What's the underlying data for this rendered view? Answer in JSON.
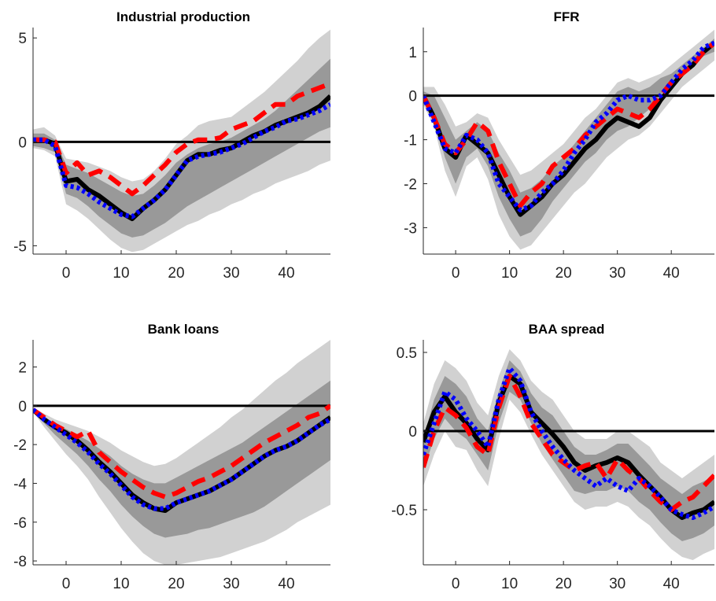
{
  "chart_data": [
    {
      "type": "line",
      "title": "Industrial production",
      "xlim": [
        -6,
        48
      ],
      "ylim": [
        -5.4,
        5.5
      ],
      "xticks": [
        0,
        10,
        20,
        30,
        40
      ],
      "yticks": [
        -5,
        0,
        5
      ],
      "ytick_labels": [
        "-5",
        "0",
        "5"
      ],
      "zero_line": true,
      "x": [
        -6,
        -4,
        -2,
        0,
        2,
        4,
        6,
        8,
        10,
        12,
        14,
        16,
        18,
        20,
        22,
        24,
        26,
        28,
        30,
        32,
        34,
        36,
        38,
        40,
        42,
        44,
        46,
        48
      ],
      "bands": {
        "outer_upper": [
          0.6,
          0.7,
          0.3,
          -0.8,
          -0.9,
          -1.0,
          -1.2,
          -1.4,
          -1.7,
          -1.9,
          -1.8,
          -1.4,
          -0.8,
          -0.1,
          0.3,
          0.8,
          1.0,
          1.1,
          1.2,
          1.6,
          2.0,
          2.4,
          2.9,
          3.4,
          3.9,
          4.5,
          5.0,
          5.4
        ],
        "inner_upper": [
          0.4,
          0.4,
          0.1,
          -1.1,
          -1.3,
          -1.5,
          -1.8,
          -2.1,
          -2.4,
          -2.6,
          -2.5,
          -2.1,
          -1.6,
          -1.0,
          -0.6,
          -0.3,
          -0.1,
          0.0,
          0.2,
          0.5,
          0.8,
          1.1,
          1.5,
          2.0,
          2.5,
          3.0,
          3.5,
          4.0
        ],
        "inner_lower": [
          -0.2,
          -0.3,
          -0.5,
          -2.5,
          -2.7,
          -3.1,
          -3.6,
          -4.0,
          -4.4,
          -4.6,
          -4.5,
          -4.2,
          -3.9,
          -3.5,
          -3.1,
          -2.8,
          -2.5,
          -2.2,
          -1.9,
          -1.6,
          -1.3,
          -1.0,
          -0.7,
          -0.4,
          -0.1,
          0.2,
          0.5,
          0.7
        ],
        "outer_lower": [
          -0.3,
          -0.4,
          -0.7,
          -3.0,
          -3.3,
          -3.7,
          -4.2,
          -4.7,
          -5.1,
          -5.3,
          -5.2,
          -4.9,
          -4.6,
          -4.3,
          -4.0,
          -3.8,
          -3.5,
          -3.3,
          -3.0,
          -2.8,
          -2.5,
          -2.3,
          -2.0,
          -1.8,
          -1.6,
          -1.4,
          -1.1,
          -0.9
        ]
      },
      "series": [
        {
          "values": [
            0.1,
            0.1,
            -0.1,
            -1.9,
            -1.8,
            -2.3,
            -2.6,
            -3.0,
            -3.4,
            -3.7,
            -3.2,
            -2.8,
            -2.3,
            -1.6,
            -0.9,
            -0.6,
            -0.6,
            -0.4,
            -0.3,
            0.0,
            0.3,
            0.5,
            0.8,
            1.0,
            1.2,
            1.4,
            1.7,
            2.2
          ],
          "color": "#000000",
          "style": "solid"
        },
        {
          "values": [
            0.1,
            0.1,
            0.0,
            -1.5,
            -1.0,
            -1.6,
            -1.4,
            -1.7,
            -2.1,
            -2.5,
            -2.1,
            -1.6,
            -1.1,
            -0.5,
            -0.1,
            0.1,
            0.1,
            0.2,
            0.6,
            0.8,
            1.0,
            1.4,
            1.8,
            1.8,
            2.2,
            2.4,
            2.6,
            2.8
          ],
          "color": "#ff0000",
          "style": "dashed"
        },
        {
          "values": [
            0.1,
            0.1,
            -0.2,
            -2.1,
            -2.2,
            -2.5,
            -2.9,
            -3.2,
            -3.5,
            -3.6,
            -3.2,
            -2.8,
            -2.3,
            -1.6,
            -0.9,
            -0.7,
            -0.6,
            -0.5,
            -0.3,
            -0.1,
            0.2,
            0.5,
            0.7,
            1.0,
            1.1,
            1.3,
            1.5,
            1.8
          ],
          "color": "#0000ff",
          "style": "dotted"
        }
      ]
    },
    {
      "type": "line",
      "title": "FFR",
      "xlim": [
        -6,
        48
      ],
      "ylim": [
        -3.6,
        1.55
      ],
      "xticks": [
        0,
        10,
        20,
        30,
        40
      ],
      "yticks": [
        -3,
        -2,
        -1,
        0,
        1
      ],
      "ytick_labels": [
        "-3",
        "-2",
        "-1",
        "0",
        "1"
      ],
      "zero_line": true,
      "x": [
        -6,
        -4,
        -2,
        0,
        2,
        4,
        6,
        8,
        10,
        12,
        14,
        16,
        18,
        20,
        22,
        24,
        26,
        28,
        30,
        32,
        34,
        36,
        38,
        40,
        42,
        44,
        46,
        48
      ],
      "bands": {
        "outer_upper": [
          0.2,
          0.2,
          -0.2,
          -0.7,
          -0.6,
          -0.4,
          -0.5,
          -1.0,
          -1.4,
          -1.8,
          -1.7,
          -1.5,
          -1.3,
          -1.1,
          -0.8,
          -0.5,
          -0.3,
          0.0,
          0.3,
          0.4,
          0.3,
          0.4,
          0.5,
          0.7,
          0.9,
          1.1,
          1.3,
          1.5
        ],
        "inner_upper": [
          0.1,
          0.0,
          -0.5,
          -1.0,
          -0.8,
          -0.6,
          -0.8,
          -1.3,
          -1.7,
          -2.2,
          -2.1,
          -1.9,
          -1.6,
          -1.4,
          -1.1,
          -0.8,
          -0.5,
          -0.2,
          0.1,
          0.2,
          0.1,
          0.2,
          0.4,
          0.5,
          0.7,
          0.9,
          1.1,
          1.3
        ],
        "inner_lower": [
          -0.1,
          -0.5,
          -1.4,
          -2.0,
          -1.4,
          -1.2,
          -1.6,
          -2.3,
          -2.8,
          -3.2,
          -3.1,
          -2.8,
          -2.4,
          -2.1,
          -1.8,
          -1.5,
          -1.3,
          -1.0,
          -0.8,
          -0.7,
          -0.5,
          -0.3,
          0.0,
          0.3,
          0.5,
          0.7,
          0.9,
          1.0
        ],
        "outer_lower": [
          -0.2,
          -0.7,
          -1.7,
          -2.3,
          -1.6,
          -1.4,
          -1.9,
          -2.7,
          -3.2,
          -3.5,
          -3.4,
          -3.1,
          -2.8,
          -2.5,
          -2.2,
          -2.0,
          -1.7,
          -1.4,
          -1.2,
          -1.0,
          -0.9,
          -0.7,
          -0.4,
          -0.1,
          0.2,
          0.4,
          0.6,
          0.8
        ]
      },
      "series": [
        {
          "values": [
            0.0,
            -0.5,
            -1.2,
            -1.4,
            -0.9,
            -1.1,
            -1.3,
            -1.8,
            -2.3,
            -2.7,
            -2.5,
            -2.3,
            -2.0,
            -1.8,
            -1.5,
            -1.2,
            -1.0,
            -0.7,
            -0.5,
            -0.6,
            -0.7,
            -0.5,
            -0.1,
            0.2,
            0.5,
            0.7,
            1.0,
            1.2
          ],
          "color": "#000000",
          "style": "solid"
        },
        {
          "values": [
            0.0,
            -0.5,
            -1.1,
            -1.3,
            -1.0,
            -0.6,
            -0.8,
            -1.5,
            -2.0,
            -2.5,
            -2.2,
            -2.0,
            -1.6,
            -1.4,
            -1.2,
            -0.9,
            -0.7,
            -0.5,
            -0.3,
            -0.4,
            -0.5,
            -0.3,
            0.0,
            0.3,
            0.5,
            0.7,
            1.0,
            1.2
          ],
          "color": "#ff0000",
          "style": "dashed"
        },
        {
          "values": [
            0.0,
            -0.6,
            -1.2,
            -1.3,
            -0.9,
            -1.0,
            -1.3,
            -2.0,
            -2.3,
            -2.6,
            -2.5,
            -2.2,
            -2.0,
            -1.7,
            -1.3,
            -1.0,
            -0.6,
            -0.4,
            -0.1,
            0.0,
            -0.1,
            -0.1,
            0.0,
            0.3,
            0.6,
            0.8,
            1.1,
            1.2
          ],
          "color": "#0000ff",
          "style": "dotted"
        }
      ]
    },
    {
      "type": "line",
      "title": "Bank loans",
      "xlim": [
        -6,
        48
      ],
      "ylim": [
        -8.2,
        3.4
      ],
      "xticks": [
        0,
        10,
        20,
        30,
        40
      ],
      "yticks": [
        -8,
        -6,
        -4,
        -2,
        0,
        2
      ],
      "ytick_labels": [
        "-8",
        "-6",
        "-4",
        "-2",
        "0",
        "2"
      ],
      "zero_line": true,
      "x": [
        -6,
        -4,
        -2,
        0,
        2,
        4,
        6,
        8,
        10,
        12,
        14,
        16,
        18,
        20,
        22,
        24,
        26,
        28,
        30,
        32,
        34,
        36,
        38,
        40,
        42,
        44,
        46,
        48
      ],
      "bands": {
        "outer_upper": [
          -0.1,
          -0.4,
          -0.7,
          -0.9,
          -1.1,
          -1.3,
          -1.6,
          -1.9,
          -2.3,
          -2.6,
          -2.9,
          -3.1,
          -3.0,
          -2.7,
          -2.3,
          -1.9,
          -1.5,
          -1.1,
          -0.6,
          -0.2,
          0.3,
          0.8,
          1.3,
          1.7,
          2.2,
          2.6,
          3.0,
          3.4
        ],
        "inner_upper": [
          -0.2,
          -0.6,
          -0.9,
          -1.2,
          -1.5,
          -1.8,
          -2.2,
          -2.6,
          -3.1,
          -3.5,
          -3.8,
          -4.0,
          -4.0,
          -3.7,
          -3.4,
          -3.1,
          -2.8,
          -2.5,
          -2.2,
          -1.9,
          -1.5,
          -1.1,
          -0.7,
          -0.3,
          0.1,
          0.5,
          0.9,
          1.3
        ],
        "inner_lower": [
          -0.3,
          -0.9,
          -1.5,
          -2.0,
          -2.5,
          -3.1,
          -3.8,
          -4.4,
          -5.1,
          -5.7,
          -6.2,
          -6.6,
          -6.8,
          -6.7,
          -6.6,
          -6.4,
          -6.3,
          -6.1,
          -5.9,
          -5.7,
          -5.5,
          -5.2,
          -4.8,
          -4.4,
          -4.0,
          -3.6,
          -3.2,
          -2.8
        ],
        "outer_lower": [
          -0.3,
          -1.1,
          -1.8,
          -2.5,
          -3.1,
          -3.8,
          -4.7,
          -5.5,
          -6.3,
          -7.0,
          -7.6,
          -8.0,
          -8.2,
          -8.2,
          -8.1,
          -8.0,
          -7.9,
          -7.8,
          -7.6,
          -7.4,
          -7.2,
          -7.0,
          -6.7,
          -6.4,
          -6.0,
          -5.7,
          -5.4,
          -5.1
        ]
      },
      "series": [
        {
          "values": [
            -0.2,
            -0.7,
            -1.1,
            -1.4,
            -1.8,
            -2.3,
            -2.9,
            -3.4,
            -4.0,
            -4.6,
            -5.0,
            -5.3,
            -5.4,
            -5.0,
            -4.8,
            -4.6,
            -4.4,
            -4.1,
            -3.8,
            -3.4,
            -3.0,
            -2.6,
            -2.3,
            -2.1,
            -1.8,
            -1.4,
            -1.0,
            -0.6
          ],
          "color": "#000000",
          "style": "solid"
        },
        {
          "values": [
            -0.2,
            -0.6,
            -1.0,
            -1.3,
            -1.6,
            -1.3,
            -2.4,
            -2.9,
            -3.4,
            -3.8,
            -4.2,
            -4.5,
            -4.7,
            -4.5,
            -4.2,
            -3.9,
            -3.7,
            -3.4,
            -3.1,
            -2.7,
            -2.3,
            -1.9,
            -1.6,
            -1.3,
            -1.0,
            -0.6,
            -0.4,
            0.0
          ],
          "color": "#ff0000",
          "style": "dashed"
        },
        {
          "values": [
            -0.2,
            -0.7,
            -1.1,
            -1.5,
            -1.9,
            -2.4,
            -3.0,
            -3.5,
            -4.1,
            -4.7,
            -5.1,
            -5.3,
            -5.3,
            -5.0,
            -4.8,
            -4.6,
            -4.4,
            -4.1,
            -3.8,
            -3.4,
            -3.0,
            -2.6,
            -2.3,
            -2.1,
            -1.8,
            -1.4,
            -1.0,
            -0.7
          ],
          "color": "#0000ff",
          "style": "dotted"
        }
      ]
    },
    {
      "type": "line",
      "title": "BAA spread",
      "xlim": [
        -6,
        48
      ],
      "ylim": [
        -0.85,
        0.58
      ],
      "xticks": [
        0,
        10,
        20,
        30,
        40
      ],
      "yticks": [
        -0.5,
        0,
        0.5
      ],
      "ytick_labels": [
        "-0.5",
        "0",
        "0.5"
      ],
      "zero_line": true,
      "x": [
        -6,
        -4,
        -2,
        0,
        2,
        4,
        6,
        8,
        10,
        12,
        14,
        16,
        18,
        20,
        22,
        24,
        26,
        28,
        30,
        32,
        34,
        36,
        38,
        40,
        42,
        44,
        46,
        48
      ],
      "bands": {
        "outer_upper": [
          0.05,
          0.3,
          0.45,
          0.4,
          0.32,
          0.18,
          0.1,
          0.35,
          0.52,
          0.45,
          0.32,
          0.25,
          0.2,
          0.1,
          0.0,
          -0.05,
          -0.05,
          -0.05,
          0.0,
          0.0,
          -0.05,
          -0.1,
          -0.2,
          -0.25,
          -0.3,
          -0.25,
          -0.2,
          -0.15
        ],
        "inner_upper": [
          -0.05,
          0.2,
          0.35,
          0.3,
          0.22,
          0.08,
          0.0,
          0.25,
          0.45,
          0.38,
          0.24,
          0.15,
          0.1,
          0.0,
          -0.1,
          -0.15,
          -0.15,
          -0.12,
          -0.08,
          -0.08,
          -0.15,
          -0.22,
          -0.3,
          -0.35,
          -0.4,
          -0.35,
          -0.32,
          -0.28
        ],
        "inner_lower": [
          -0.25,
          -0.05,
          0.08,
          0.0,
          -0.05,
          -0.15,
          -0.25,
          0.05,
          0.25,
          0.2,
          0.05,
          -0.08,
          -0.18,
          -0.28,
          -0.38,
          -0.4,
          -0.38,
          -0.38,
          -0.35,
          -0.38,
          -0.45,
          -0.5,
          -0.58,
          -0.65,
          -0.7,
          -0.68,
          -0.65,
          -0.6
        ],
        "outer_lower": [
          -0.35,
          -0.15,
          0.0,
          -0.1,
          -0.12,
          -0.25,
          -0.35,
          -0.05,
          0.2,
          0.12,
          -0.02,
          -0.15,
          -0.25,
          -0.35,
          -0.45,
          -0.5,
          -0.48,
          -0.48,
          -0.45,
          -0.48,
          -0.55,
          -0.6,
          -0.68,
          -0.75,
          -0.8,
          -0.82,
          -0.78,
          -0.75
        ]
      },
      "series": [
        {
          "values": [
            -0.07,
            0.12,
            0.22,
            0.12,
            0.05,
            -0.05,
            -0.12,
            0.18,
            0.35,
            0.3,
            0.12,
            0.05,
            -0.02,
            -0.1,
            -0.2,
            -0.25,
            -0.22,
            -0.2,
            -0.17,
            -0.2,
            -0.28,
            -0.35,
            -0.42,
            -0.5,
            -0.55,
            -0.52,
            -0.5,
            -0.45
          ],
          "color": "#000000",
          "style": "solid"
        },
        {
          "values": [
            -0.23,
            0.0,
            0.15,
            0.1,
            0.02,
            -0.1,
            -0.15,
            0.15,
            0.35,
            0.22,
            0.05,
            -0.05,
            -0.15,
            -0.2,
            -0.25,
            -0.22,
            -0.2,
            -0.3,
            -0.18,
            -0.25,
            -0.3,
            -0.38,
            -0.45,
            -0.5,
            -0.45,
            -0.42,
            -0.35,
            -0.28
          ],
          "color": "#ff0000",
          "style": "dashed"
        },
        {
          "values": [
            -0.15,
            0.05,
            0.25,
            0.2,
            0.08,
            0.0,
            -0.1,
            0.2,
            0.4,
            0.32,
            0.12,
            0.0,
            -0.1,
            -0.18,
            -0.25,
            -0.3,
            -0.35,
            -0.3,
            -0.35,
            -0.38,
            -0.3,
            -0.35,
            -0.42,
            -0.5,
            -0.53,
            -0.55,
            -0.52,
            -0.48
          ],
          "color": "#0000ff",
          "style": "dotted"
        }
      ]
    }
  ],
  "band_colors": {
    "outer": "#d1d1d1",
    "inner": "#999999"
  }
}
